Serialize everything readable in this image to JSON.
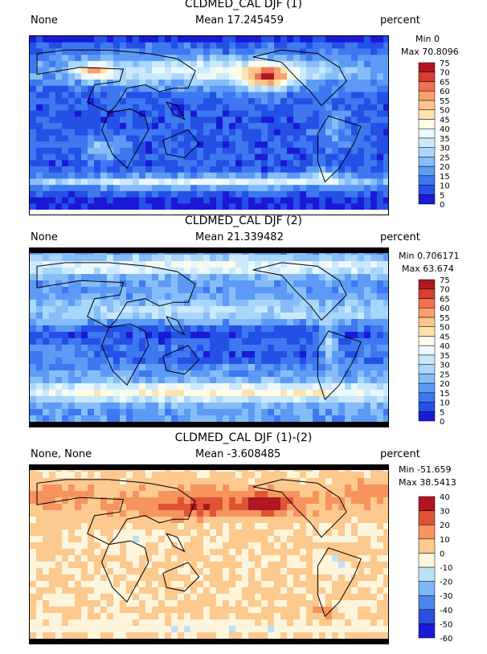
{
  "panels": [
    {
      "title": "CLDMED_CAL DJF (1)",
      "left_label": "None",
      "mean_label": "Mean 17.245459",
      "units": "percent",
      "min_label": "Min 0",
      "max_label": "Max 70.8096"
    },
    {
      "title": "CLDMED_CAL DJF (2)",
      "left_label": "None",
      "mean_label": "Mean 21.339482",
      "units": "percent",
      "min_label": "Min 0.706171",
      "max_label": "Max 63.674"
    },
    {
      "title": "CLDMED_CAL DJF (1)-(2)",
      "left_label": "None, None",
      "mean_label": "Mean -3.608485",
      "units": "percent",
      "min_label": "Min -51.659",
      "max_label": "Max 38.5413"
    }
  ],
  "chart_data": [
    {
      "type": "heatmap",
      "title": "CLDMED_CAL DJF (1)",
      "units": "percent",
      "mean": 17.245459,
      "min": 0,
      "max": 70.8096,
      "colorbar_levels": [
        0,
        5,
        10,
        15,
        20,
        25,
        30,
        35,
        40,
        45,
        50,
        55,
        60,
        65,
        70,
        75
      ],
      "colorbar_colors": [
        "#1a1ad6",
        "#2450e6",
        "#3d78f0",
        "#5c9af5",
        "#86bdf8",
        "#a9d6fb",
        "#cbe9fd",
        "#ebf8fe",
        "#fefce6",
        "#fde3b0",
        "#fcc58a",
        "#f9a06c",
        "#ee7150",
        "#d83c32",
        "#b01622"
      ]
    },
    {
      "type": "heatmap",
      "title": "CLDMED_CAL DJF (2)",
      "units": "percent",
      "mean": 21.339482,
      "min": 0.706171,
      "max": 63.674,
      "colorbar_levels": [
        0,
        5,
        10,
        15,
        20,
        25,
        30,
        35,
        40,
        45,
        50,
        55,
        60,
        65,
        70,
        75
      ],
      "colorbar_colors": [
        "#1a1ad6",
        "#2450e6",
        "#3d78f0",
        "#5c9af5",
        "#86bdf8",
        "#a9d6fb",
        "#cbe9fd",
        "#ebf8fe",
        "#fefce6",
        "#fde3b0",
        "#fcc58a",
        "#f9a06c",
        "#ee7150",
        "#d83c32",
        "#b01622"
      ]
    },
    {
      "type": "heatmap",
      "title": "CLDMED_CAL DJF (1)-(2)",
      "units": "percent",
      "mean": -3.608485,
      "min": -51.659,
      "max": 38.5413,
      "colorbar_levels": [
        -60,
        -50,
        -40,
        -30,
        -20,
        -10,
        0,
        10,
        20,
        30,
        40
      ],
      "colorbar_colors": [
        "#1a1ad6",
        "#2b4fe0",
        "#4a86ee",
        "#7db6f5",
        "#bde0fb",
        "#fdf5dc",
        "#fcc98e",
        "#f7945e",
        "#e05336",
        "#b01622"
      ]
    }
  ]
}
